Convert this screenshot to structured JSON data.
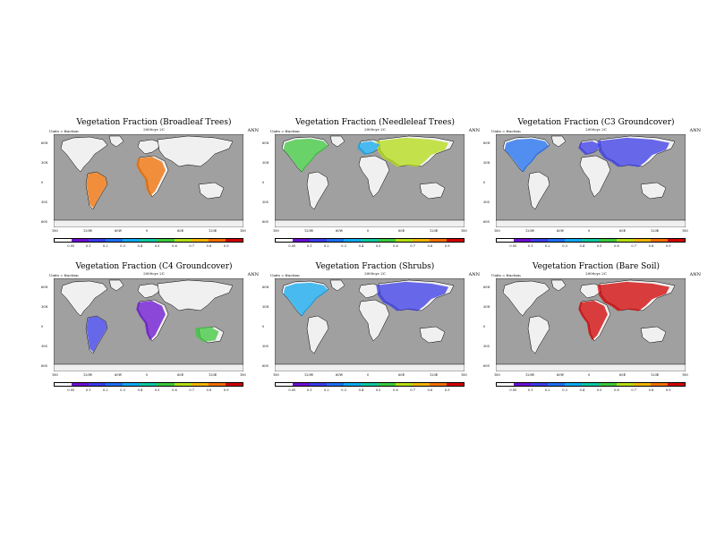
{
  "common": {
    "units_label": "Units = fraction",
    "period_label": "2000cyc 2C",
    "season": "ANN",
    "lat_labels": [
      "60N",
      "30N",
      "0",
      "30S",
      "60S"
    ],
    "lon_labels": [
      "180",
      "120W",
      "60W",
      "0",
      "60E",
      "120E",
      "180"
    ],
    "colorbar_labels": [
      "0.05",
      "0.1",
      "0.2",
      "0.3",
      "0.4",
      "0.5",
      "0.6",
      "0.7",
      "0.8",
      "0.9"
    ],
    "colorbar_colors": [
      "#ffffff",
      "#6a0fd0",
      "#3a3ae8",
      "#1e6ef0",
      "#10a8f0",
      "#0ec8a0",
      "#3cc83c",
      "#b4dc14",
      "#f0b400",
      "#f06e00",
      "#d20000"
    ],
    "land_none_color": "#f0f0f0",
    "ocean_color": "#a0a0a0"
  },
  "chart_data": [
    {
      "type": "heatmap",
      "title": "Vegetation Fraction (Broadleaf Trees)",
      "key": "broadleaf"
    },
    {
      "type": "heatmap",
      "title": "Vegetation Fraction (Needleleaf Trees)",
      "key": "needleleaf"
    },
    {
      "type": "heatmap",
      "title": "Vegetation Fraction (C3 Groundcover)",
      "key": "c3"
    },
    {
      "type": "heatmap",
      "title": "Vegetation Fraction (C4 Groundcover)",
      "key": "c4"
    },
    {
      "type": "heatmap",
      "title": "Vegetation Fraction (Shrubs)",
      "key": "shrubs"
    },
    {
      "type": "heatmap",
      "title": "Vegetation Fraction (Bare Soil)",
      "key": "bare"
    }
  ]
}
